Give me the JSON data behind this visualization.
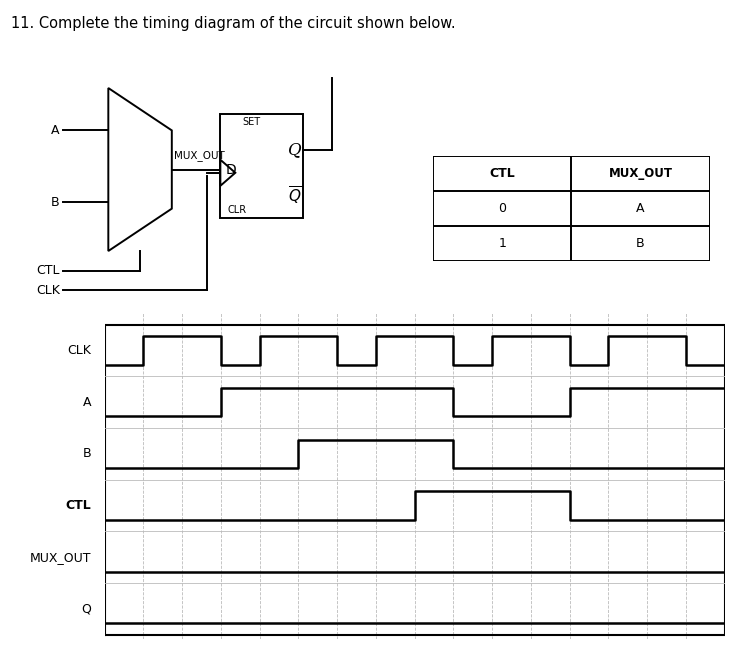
{
  "title": "11. Complete the timing diagram of the circuit shown below.",
  "title_fontsize": 10.5,
  "bg_color": "#ffffff",
  "text_color": "#000000",
  "ec": "#000000",
  "grid_color": "#bbbbbb",
  "table_headers": [
    "CTL",
    "MUX_OUT"
  ],
  "table_rows": [
    [
      "0",
      "A"
    ],
    [
      "1",
      "B"
    ]
  ],
  "signal_labels": [
    "CLK",
    "A",
    "B",
    "CTL",
    "MUX_OUT",
    "Q"
  ],
  "num_cols": 16,
  "clk_signal": [
    0,
    1,
    1,
    0,
    1,
    1,
    0,
    1,
    1,
    0,
    1,
    1,
    0,
    1,
    1,
    0
  ],
  "A_signal": [
    0,
    0,
    0,
    1,
    1,
    1,
    1,
    1,
    1,
    0,
    0,
    0,
    1,
    1,
    1,
    1
  ],
  "B_signal": [
    0,
    0,
    0,
    0,
    0,
    1,
    1,
    1,
    1,
    0,
    0,
    0,
    0,
    0,
    0,
    0
  ],
  "CTL_signal": [
    0,
    0,
    0,
    0,
    0,
    0,
    0,
    0,
    1,
    1,
    1,
    1,
    0,
    0,
    0,
    0
  ],
  "MUX_OUT_signal": [],
  "Q_signal": []
}
